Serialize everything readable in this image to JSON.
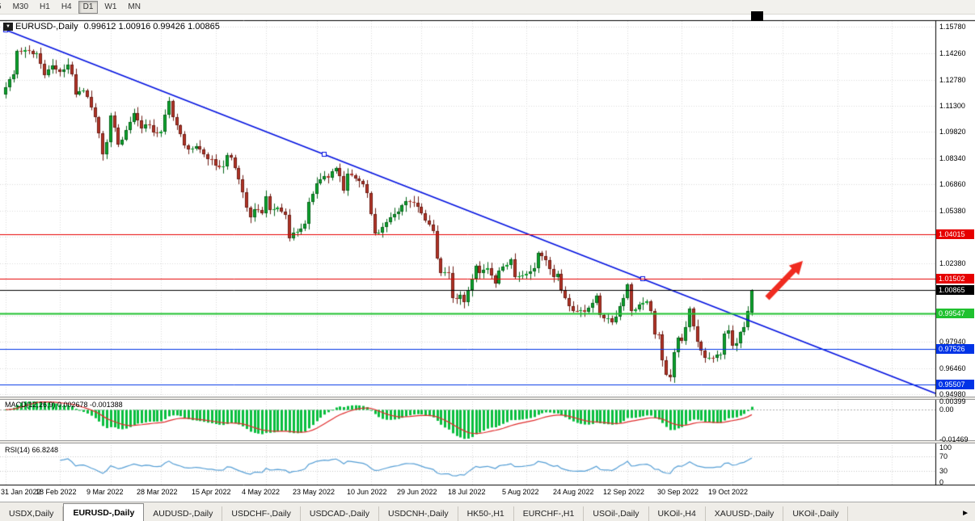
{
  "toolbar": {
    "buttons": [
      {
        "label": "5",
        "active": false
      },
      {
        "label": "M30",
        "active": false
      },
      {
        "label": "H1",
        "active": false
      },
      {
        "label": "H4",
        "active": false
      },
      {
        "label": "D1",
        "active": true
      },
      {
        "label": "W1",
        "active": false
      },
      {
        "label": "MN",
        "active": false
      }
    ]
  },
  "chart_header": {
    "dropdown_icon": "▼",
    "symbol": "EURUSD-,Daily",
    "ohlc": "0.99612 1.00916 0.99426 1.00865"
  },
  "indicators": {
    "macd_label": "MACD(12,26,9) 0.002678 -0.001388",
    "rsi_label": "RSI(14) 66.8248"
  },
  "price_scale": {
    "ticks": [
      "1.15780",
      "1.14260",
      "1.12780",
      "1.11300",
      "1.09820",
      "1.08340",
      "1.06860",
      "1.05380",
      "1.02380",
      "0.97940",
      "0.96460",
      "0.94980"
    ],
    "badges": [
      {
        "text": "1.04015",
        "value": 1.04015,
        "bg": "#E60000"
      },
      {
        "text": "1.01502",
        "value": 1.01502,
        "bg": "#E60000"
      },
      {
        "text": "1.00865",
        "value": 1.00865,
        "bg": "#000000"
      },
      {
        "text": "0.99547",
        "value": 0.99547,
        "bg": "#1FC12F"
      },
      {
        "text": "0.97526",
        "value": 0.97526,
        "bg": "#0033E6"
      },
      {
        "text": "0.95507",
        "value": 0.95507,
        "bg": "#0033E6"
      }
    ]
  },
  "date_axis": {
    "labels": [
      {
        "text": "31 Jan 2022",
        "index": 0
      },
      {
        "text": "18 Feb 2022",
        "index": 14
      },
      {
        "text": "9 Mar 2022",
        "index": 27
      },
      {
        "text": "28 Mar 2022",
        "index": 40
      },
      {
        "text": "15 Apr 2022",
        "index": 54
      },
      {
        "text": "4 May 2022",
        "index": 67
      },
      {
        "text": "23 May 2022",
        "index": 80
      },
      {
        "text": "10 Jun 2022",
        "index": 94
      },
      {
        "text": "29 Jun 2022",
        "index": 107
      },
      {
        "text": "18 Jul 2022",
        "index": 120
      },
      {
        "text": "5 Aug 2022",
        "index": 134
      },
      {
        "text": "24 Aug 2022",
        "index": 147
      },
      {
        "text": "12 Sep 2022",
        "index": 160
      },
      {
        "text": "30 Sep 2022",
        "index": 174
      },
      {
        "text": "19 Oct 2022",
        "index": 187
      }
    ]
  },
  "tabs": {
    "scroll_right_icon": "►",
    "items": [
      {
        "label": "USDX,Daily",
        "active": false
      },
      {
        "label": "EURUSD-,Daily",
        "active": true
      },
      {
        "label": "AUDUSD-,Daily",
        "active": false
      },
      {
        "label": "USDCHF-,Daily",
        "active": false
      },
      {
        "label": "USDCAD-,Daily",
        "active": false
      },
      {
        "label": "USDCNH-,Daily",
        "active": false
      },
      {
        "label": "HK50-,H1",
        "active": false
      },
      {
        "label": "EURCHF-,H1",
        "active": false
      },
      {
        "label": "USOil-,Daily",
        "active": false
      },
      {
        "label": "UKOil-,H4",
        "active": false
      },
      {
        "label": "XAUUSD-,Daily",
        "active": false
      },
      {
        "label": "UKOil-,Daily",
        "active": false
      }
    ]
  },
  "chart_data": {
    "type": "candlestick",
    "symbol": "EURUSD-",
    "timeframe": "Daily",
    "current_candle": {
      "open": 0.99612,
      "high": 1.00916,
      "low": 0.99426,
      "close": 1.00865
    },
    "num_candles": 193,
    "y_axis": {
      "min": 0.94935,
      "max": 1.161
    },
    "grid_prices": [
      1.1578,
      1.1426,
      1.1278,
      1.113,
      1.0982,
      1.0834,
      1.0686,
      1.0538,
      1.039,
      1.0238,
      1.009,
      0.9942,
      0.9794,
      0.9646,
      0.9498
    ],
    "price_keypoints": [
      [
        0,
        1.1235
      ],
      [
        2,
        1.131
      ],
      [
        3,
        1.1442
      ],
      [
        5,
        1.1445
      ],
      [
        7,
        1.1422
      ],
      [
        8,
        1.1426
      ],
      [
        10,
        1.1306
      ],
      [
        12,
        1.136
      ],
      [
        14,
        1.132
      ],
      [
        16,
        1.1363
      ],
      [
        17,
        1.1307
      ],
      [
        18,
        1.1193
      ],
      [
        20,
        1.1216
      ],
      [
        22,
        1.1121
      ],
      [
        23,
        1.1066
      ],
      [
        25,
        1.0854
      ],
      [
        26,
        1.0926
      ],
      [
        27,
        1.1073
      ],
      [
        29,
        1.0911
      ],
      [
        30,
        1.094
      ],
      [
        32,
        1.1037
      ],
      [
        33,
        1.109
      ],
      [
        35,
        1.1002
      ],
      [
        36,
        1.1027
      ],
      [
        38,
        1.098
      ],
      [
        40,
        1.0983
      ],
      [
        42,
        1.1156
      ],
      [
        43,
        1.1067
      ],
      [
        45,
        1.097
      ],
      [
        46,
        1.0905
      ],
      [
        48,
        1.0888
      ],
      [
        50,
        1.0883
      ],
      [
        52,
        1.0828
      ],
      [
        53,
        1.0827
      ],
      [
        55,
        1.0782
      ],
      [
        56,
        1.0786
      ],
      [
        57,
        1.0853
      ],
      [
        58,
        1.0837
      ],
      [
        60,
        1.0712
      ],
      [
        61,
        1.0643
      ],
      [
        62,
        1.0556
      ],
      [
        63,
        1.0499
      ],
      [
        64,
        1.0545
      ],
      [
        66,
        1.0522
      ],
      [
        67,
        1.0618
      ],
      [
        68,
        1.054
      ],
      [
        70,
        1.0554
      ],
      [
        71,
        1.0531
      ],
      [
        72,
        1.0515
      ],
      [
        73,
        1.0379
      ],
      [
        74,
        1.0411
      ],
      [
        76,
        1.0435
      ],
      [
        77,
        1.0464
      ],
      [
        78,
        1.0588
      ],
      [
        80,
        1.0692
      ],
      [
        82,
        1.0733
      ],
      [
        83,
        1.0724
      ],
      [
        85,
        1.078
      ],
      [
        86,
        1.0734
      ],
      [
        87,
        1.0652
      ],
      [
        88,
        1.0748
      ],
      [
        90,
        1.0719
      ],
      [
        91,
        1.0703
      ],
      [
        93,
        1.0637
      ],
      [
        94,
        1.0518
      ],
      [
        95,
        1.041
      ],
      [
        96,
        1.0414
      ],
      [
        97,
        1.0444
      ],
      [
        99,
        1.0499
      ],
      [
        101,
        1.0533
      ],
      [
        102,
        1.0566
      ],
      [
        104,
        1.0586
      ],
      [
        105,
        1.0583
      ],
      [
        107,
        1.0524
      ],
      [
        108,
        1.0482
      ],
      [
        110,
        1.0423
      ],
      [
        111,
        1.0265
      ],
      [
        112,
        1.0183
      ],
      [
        114,
        1.0186
      ],
      [
        115,
        1.004
      ],
      [
        116,
        1.0037
      ],
      [
        117,
        1.006
      ],
      [
        118,
        1.0019
      ],
      [
        119,
        1.0086
      ],
      [
        121,
        1.0227
      ],
      [
        122,
        1.0182
      ],
      [
        124,
        1.0213
      ],
      [
        126,
        1.0124
      ],
      [
        127,
        1.0199
      ],
      [
        128,
        1.022
      ],
      [
        130,
        1.026
      ],
      [
        131,
        1.0162
      ],
      [
        132,
        1.0165
      ],
      [
        134,
        1.018
      ],
      [
        135,
        1.0193
      ],
      [
        136,
        1.0213
      ],
      [
        137,
        1.0298
      ],
      [
        139,
        1.0258
      ],
      [
        141,
        1.0163
      ],
      [
        142,
        1.018
      ],
      [
        143,
        1.0088
      ],
      [
        144,
        1.004
      ],
      [
        146,
        0.997
      ],
      [
        147,
        0.9968
      ],
      [
        148,
        0.9972
      ],
      [
        149,
        0.9964
      ],
      [
        151,
        1.0016
      ],
      [
        152,
        1.0054
      ],
      [
        153,
        0.9945
      ],
      [
        155,
        0.9928
      ],
      [
        156,
        0.9903
      ],
      [
        158,
        0.9996
      ],
      [
        159,
        1.004
      ],
      [
        160,
        1.012
      ],
      [
        161,
        0.997
      ],
      [
        162,
        0.9979
      ],
      [
        164,
        1.0016
      ],
      [
        165,
        1.0023
      ],
      [
        166,
        0.9971
      ],
      [
        167,
        0.9837
      ],
      [
        168,
        0.9835
      ],
      [
        169,
        0.969
      ],
      [
        170,
        0.961
      ],
      [
        171,
        0.9594
      ],
      [
        172,
        0.9736
      ],
      [
        173,
        0.9816
      ],
      [
        174,
        0.9802
      ],
      [
        176,
        0.9983
      ],
      [
        177,
        0.9884
      ],
      [
        178,
        0.9793
      ],
      [
        180,
        0.9703
      ],
      [
        181,
        0.9705
      ],
      [
        182,
        0.9704
      ],
      [
        184,
        0.9722
      ],
      [
        185,
        0.9843
      ],
      [
        186,
        0.986
      ],
      [
        187,
        0.9772
      ],
      [
        188,
        0.9785
      ],
      [
        189,
        0.9848
      ],
      [
        190,
        0.9878
      ],
      [
        191,
        0.9967
      ],
      [
        192,
        1.00865
      ]
    ],
    "trendline": {
      "color": "#0010E0",
      "points": [
        [
          0,
          1.156
        ],
        [
          164,
          1.015
        ]
      ],
      "extend_right": true,
      "handle_indices": [
        0,
        82,
        164
      ]
    },
    "horizontal_lines": [
      {
        "price": 1.04015,
        "color": "#E60000",
        "width": 1
      },
      {
        "price": 1.01502,
        "color": "#E60000",
        "width": 1
      },
      {
        "price": 1.00865,
        "color": "#000000",
        "width": 1
      },
      {
        "price": 0.99547,
        "color": "#1FC12F",
        "width": 2
      },
      {
        "price": 0.97526,
        "color": "#0033E6",
        "width": 1
      },
      {
        "price": 0.95507,
        "color": "#0033E6",
        "width": 1
      }
    ],
    "colors": {
      "up": "#0CA32C",
      "up_stroke": "#07651B",
      "down": "#B23327",
      "down_stroke": "#6E1D14"
    },
    "macd": {
      "params": "12,26,9",
      "value": 0.002678,
      "signal_value": -0.001388,
      "hist_color": "#09BE3E",
      "signal_color": "#E02E2E",
      "scale": {
        "min": -0.01469,
        "max": 0.00399
      },
      "axis_labels": [
        {
          "text": "0.00399",
          "value": 0.00399
        },
        {
          "text": "0.00",
          "value": 0
        },
        {
          "text": "-0.01469",
          "value": -0.01469
        }
      ]
    },
    "rsi": {
      "period": 14,
      "value": 66.8248,
      "line_color": "#569FD6",
      "levels": [
        100,
        70,
        30,
        0
      ]
    },
    "arrow": {
      "color": "#F02B20",
      "tail": [
        949,
        369
      ],
      "tip": [
        993,
        323
      ]
    },
    "future_grid_indices": [
      200,
      214,
      228
    ]
  }
}
